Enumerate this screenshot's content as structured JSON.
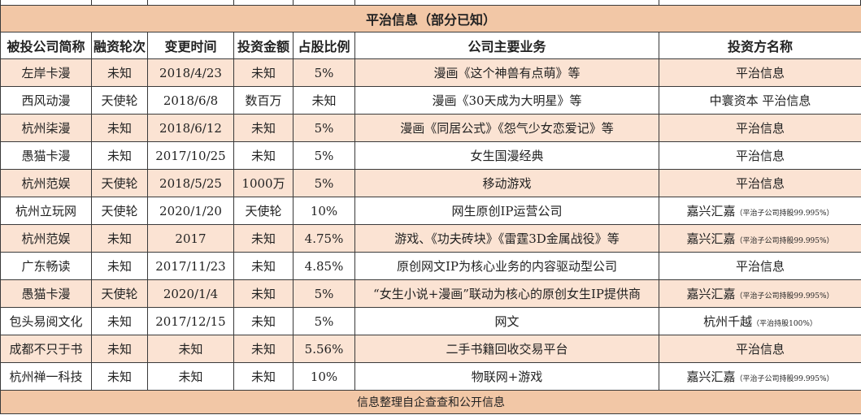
{
  "table": {
    "title": "平治信息（部分已知）",
    "headers": [
      "被投公司简称",
      "融资轮次",
      "变更时间",
      "投资金额",
      "占股比例",
      "公司主要业务",
      "投资方名称"
    ],
    "rows": [
      {
        "company": "左岸卡漫",
        "round": "未知",
        "date": "2018/4/23",
        "amount": "未知",
        "stake": "5%",
        "business": "漫画《这个神兽有点萌》等",
        "investor": "平治信息",
        "note": ""
      },
      {
        "company": "西风动漫",
        "round": "天使轮",
        "date": "2018/6/8",
        "amount": "数百万",
        "stake": "未知",
        "business": "漫画《30天成为大明星》等",
        "investor": "中寰资本 平治信息",
        "note": ""
      },
      {
        "company": "杭州柒漫",
        "round": "未知",
        "date": "2018/6/12",
        "amount": "未知",
        "stake": "5%",
        "business": "漫画《同居公式》《怨气少女恋爱记》等",
        "investor": "平治信息",
        "note": ""
      },
      {
        "company": "愚猫卡漫",
        "round": "未知",
        "date": "2017/10/25",
        "amount": "未知",
        "stake": "5%",
        "business": "女生国漫经典",
        "investor": "平治信息",
        "note": ""
      },
      {
        "company": "杭州范娱",
        "round": "天使轮",
        "date": "2018/5/25",
        "amount": "1000万",
        "stake": "5%",
        "business": "移动游戏",
        "investor": "平治信息",
        "note": ""
      },
      {
        "company": "杭州立玩网",
        "round": "天使轮",
        "date": "2020/1/20",
        "amount": "天使轮",
        "stake": "10%",
        "business": "网生原创IP运营公司",
        "investor": "嘉兴汇嘉",
        "note": "（平治子公司持股99.995%）"
      },
      {
        "company": "杭州范娱",
        "round": "未知",
        "date": "2017",
        "amount": "未知",
        "stake": "4.75%",
        "business": "游戏、《功夫砖块》《雷霆3D金属战役》等",
        "investor": "嘉兴汇嘉",
        "note": "（平治子公司持股99.995%）"
      },
      {
        "company": "广东畅读",
        "round": "未知",
        "date": "2017/11/23",
        "amount": "未知",
        "stake": "4.85%",
        "business": "原创网文IP为核心业务的内容驱动型公司",
        "investor": "平治信息",
        "note": ""
      },
      {
        "company": "愚猫卡漫",
        "round": "天使轮",
        "date": "2020/1/4",
        "amount": "未知",
        "stake": "5%",
        "business": "“女生小说+漫画”联动为核心的原创女生IP提供商",
        "investor": "嘉兴汇嘉",
        "note": "（平治子公司持股99.995%）"
      },
      {
        "company": "包头易阅文化",
        "round": "未知",
        "date": "2017/12/15",
        "amount": "未知",
        "stake": "5%",
        "business": "网文",
        "investor": "杭州千越",
        "note": "（平治持股100%）"
      },
      {
        "company": "成都不只于书",
        "round": "未知",
        "date": "未知",
        "amount": "未知",
        "stake": "5.56%",
        "business": "二手书籍回收交易平台",
        "investor": "平治信息",
        "note": ""
      },
      {
        "company": "杭州禅一科技",
        "round": "未知",
        "date": "未知",
        "amount": "未知",
        "stake": "10%",
        "business": "物联网+游戏",
        "investor": "嘉兴汇嘉",
        "note": "（平治子公司持股99.995%）"
      }
    ],
    "footer": "信息整理自企查查和公开信息"
  }
}
